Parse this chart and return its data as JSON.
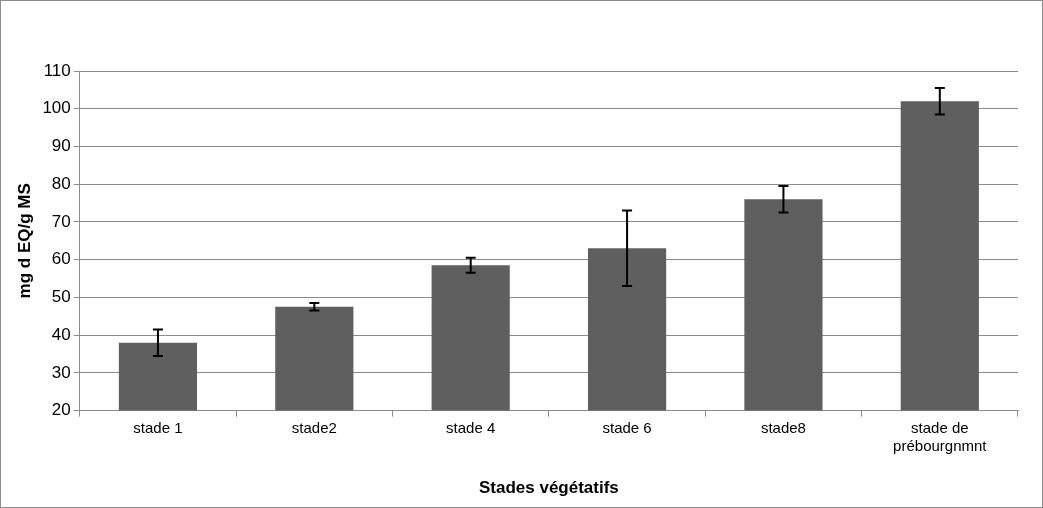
{
  "chart_data": {
    "type": "bar",
    "xlabel": "Stades végétatifs",
    "ylabel": "mg d EQ/g MS",
    "categories": [
      "stade 1",
      "stade2",
      "stade 4",
      "stade 6",
      "stade8",
      "stade de prébourgnmnt"
    ],
    "values": [
      38,
      47.5,
      58.5,
      63,
      76,
      102
    ],
    "errors": [
      3.5,
      1,
      2,
      10,
      3.5,
      3.5
    ],
    "color": "#5f5f5f",
    "ylim": [
      20,
      110
    ],
    "yticks": [
      20,
      30,
      40,
      50,
      60,
      70,
      80,
      90,
      100,
      110
    ],
    "grid": "y",
    "legend": false
  }
}
